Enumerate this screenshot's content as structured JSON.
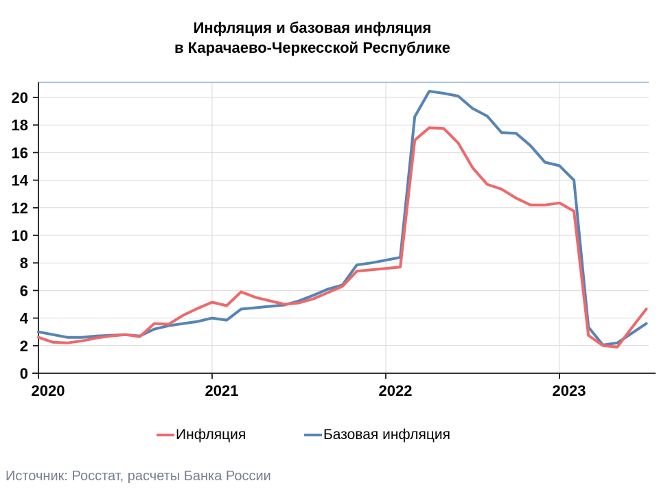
{
  "header": {
    "title_line1": "Инфляция и базовая инфляция",
    "title_line2": "в Карачаево-Черкесской Республике"
  },
  "chart_data": {
    "type": "line",
    "x": [
      "2020-01",
      "2020-02",
      "2020-03",
      "2020-04",
      "2020-05",
      "2020-06",
      "2020-07",
      "2020-08",
      "2020-09",
      "2020-10",
      "2020-11",
      "2020-12",
      "2021-01",
      "2021-02",
      "2021-03",
      "2021-04",
      "2021-05",
      "2021-06",
      "2021-07",
      "2021-08",
      "2021-09",
      "2021-10",
      "2021-11",
      "2021-12",
      "2022-01",
      "2022-02",
      "2022-03",
      "2022-04",
      "2022-05",
      "2022-06",
      "2022-07",
      "2022-08",
      "2022-09",
      "2022-10",
      "2022-11",
      "2022-12",
      "2023-01",
      "2023-02",
      "2023-03",
      "2023-04",
      "2023-05",
      "2023-06",
      "2023-07"
    ],
    "series": [
      {
        "name": "Инфляция",
        "color": "#ED696C",
        "values": [
          2.6,
          2.25,
          2.2,
          2.35,
          2.55,
          2.7,
          2.8,
          2.65,
          3.6,
          3.55,
          4.2,
          4.7,
          5.15,
          4.9,
          5.9,
          5.5,
          5.25,
          5.0,
          5.1,
          5.4,
          5.85,
          6.3,
          7.4,
          7.5,
          7.6,
          7.7,
          16.9,
          17.8,
          17.75,
          16.7,
          14.9,
          13.7,
          13.35,
          12.7,
          12.2,
          12.2,
          12.35,
          11.75,
          2.75,
          2.0,
          1.9,
          3.3,
          4.65
        ]
      },
      {
        "name": "Базовая инфляция",
        "color": "#5684B4",
        "values": [
          3.0,
          2.8,
          2.6,
          2.6,
          2.7,
          2.75,
          2.8,
          2.7,
          3.2,
          3.45,
          3.6,
          3.75,
          4.0,
          3.85,
          4.65,
          4.75,
          4.85,
          4.95,
          5.25,
          5.65,
          6.1,
          6.4,
          7.85,
          8.0,
          8.2,
          8.4,
          18.6,
          20.45,
          20.3,
          20.1,
          19.2,
          18.65,
          17.45,
          17.4,
          16.5,
          15.3,
          15.05,
          14.0,
          3.35,
          2.05,
          2.2,
          2.9,
          3.6
        ]
      }
    ],
    "title": "Инфляция и базовая инфляция в Карачаево-Черкесской Республике",
    "xlabel": "",
    "ylabel": "",
    "ylim": [
      0,
      21.1
    ],
    "y_ticks": [
      0,
      2,
      4,
      6,
      8,
      10,
      12,
      14,
      16,
      18,
      20
    ],
    "x_year_ticks": [
      "2020",
      "2021",
      "2022",
      "2023"
    ],
    "grid": true,
    "legend_position": "bottom"
  },
  "legend": {
    "items": [
      {
        "label": "Инфляция",
        "color": "#ED696C"
      },
      {
        "label": "Базовая инфляция",
        "color": "#5684B4"
      }
    ]
  },
  "footer": {
    "source": "Источник: Росстат, расчеты Банка России"
  },
  "colors": {
    "line_inflation": "#ED696C",
    "line_core_inflation": "#5684B4",
    "plot_top_border": "#8FAFD1",
    "gridline": "#D9D9D9",
    "axis": "#1A1A1A",
    "tick_label": "#000000",
    "source_text": "#76818F"
  }
}
